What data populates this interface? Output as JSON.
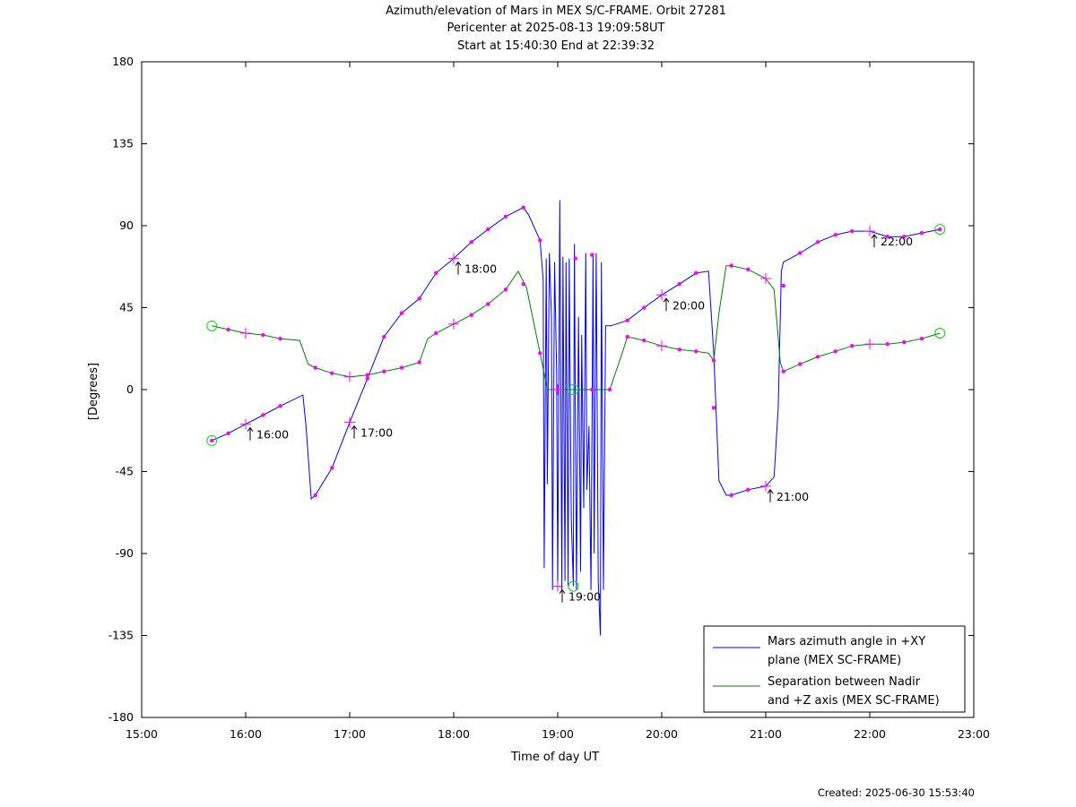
{
  "chart_data": {
    "type": "line",
    "title_lines": [
      "Azimuth/elevation of Mars in MEX S/C-FRAME.  Orbit 27281",
      "Pericenter at 2025-08-13 19:09:58UT",
      "Start at 15:40:30 End at 22:39:32"
    ],
    "xlabel": "Time of day UT",
    "ylabel": "[Degrees]",
    "xlim": [
      15.0,
      23.0
    ],
    "ylim": [
      -180,
      180
    ],
    "x_ticks": [
      15,
      16,
      17,
      18,
      19,
      20,
      21,
      22,
      23
    ],
    "x_tick_labels": [
      "15:00",
      "16:00",
      "17:00",
      "18:00",
      "19:00",
      "20:00",
      "21:00",
      "22:00",
      "23:00"
    ],
    "y_ticks": [
      180,
      135,
      90,
      45,
      0,
      -45,
      -90,
      -135,
      -180
    ],
    "y_tick_labels": [
      "180",
      "135",
      "90",
      "45",
      "0",
      "-45",
      "-90",
      "-135",
      "-180"
    ],
    "grid": false,
    "legend_position": "bottom-right",
    "series": [
      {
        "name": "Mars azimuth angle in +XY plane (MEX SC-FRAME)",
        "legend_lines": [
          "Mars azimuth angle in +XY",
          "plane (MEX SC-FRAME)"
        ],
        "color": "#0000ff",
        "x": [
          15.675,
          15.833,
          16.0,
          16.167,
          16.333,
          16.55,
          16.58,
          16.63,
          16.67,
          16.83,
          17.0,
          17.17,
          17.33,
          17.5,
          17.67,
          17.83,
          18.0,
          18.17,
          18.33,
          18.5,
          18.67,
          18.72,
          18.83,
          18.86,
          18.87,
          18.89,
          18.9,
          18.92,
          18.94,
          18.95,
          18.97,
          18.99,
          19.0,
          19.02,
          19.04,
          19.05,
          19.07,
          19.08,
          19.1,
          19.11,
          19.13,
          19.15,
          19.16,
          19.18,
          19.2,
          19.22,
          19.23,
          19.25,
          19.27,
          19.28,
          19.3,
          19.32,
          19.34,
          19.35,
          19.37,
          19.39,
          19.41,
          19.42,
          19.44,
          19.46,
          19.48,
          19.49,
          19.5,
          19.51,
          19.67,
          19.83,
          20.0,
          20.17,
          20.33,
          20.45,
          20.5,
          20.55,
          20.62,
          20.67,
          20.83,
          21.0,
          21.08,
          21.12,
          21.15,
          21.17,
          21.33,
          21.5,
          21.67,
          21.83,
          22.0,
          22.17,
          22.33,
          22.5,
          22.675
        ],
        "y": [
          -28,
          -24,
          -19,
          -14,
          -9,
          -3,
          -20,
          -60,
          -58,
          -43,
          -18,
          6,
          29,
          42,
          50,
          64,
          72,
          81,
          88,
          95,
          100,
          96,
          82,
          60,
          -98,
          72,
          -52,
          75,
          40,
          -110,
          70,
          10,
          -108,
          104,
          -110,
          73,
          -105,
          70,
          -108,
          72,
          -70,
          -108,
          80,
          -110,
          40,
          -100,
          30,
          -65,
          75,
          -55,
          -20,
          -110,
          75,
          -90,
          75,
          -105,
          -135,
          70,
          -110,
          35,
          35,
          35,
          35,
          35,
          38,
          45,
          52,
          58,
          64,
          65,
          20,
          -50,
          -58,
          -58,
          -55,
          -53,
          -48,
          -10,
          65,
          70,
          75,
          81,
          85,
          87,
          87,
          84,
          84,
          86,
          88
        ]
      },
      {
        "name": "Separation between Nadir and +Z axis (MEX SC-FRAME)",
        "legend_lines": [
          "Separation between Nadir",
          "and +Z axis (MEX SC-FRAME)"
        ],
        "color": "#008000",
        "x": [
          15.675,
          15.833,
          16.0,
          16.167,
          16.333,
          16.52,
          16.6,
          16.67,
          16.83,
          17.0,
          17.17,
          17.33,
          17.5,
          17.67,
          17.75,
          17.83,
          18.0,
          18.17,
          18.33,
          18.5,
          18.62,
          18.7,
          18.83,
          18.9,
          19.0,
          19.17,
          19.33,
          19.5,
          19.62,
          19.67,
          19.83,
          20.0,
          20.17,
          20.33,
          20.45,
          20.5,
          20.55,
          20.62,
          20.67,
          20.83,
          21.0,
          21.08,
          21.14,
          21.17,
          21.33,
          21.5,
          21.67,
          21.83,
          22.0,
          22.17,
          22.33,
          22.5,
          22.675
        ],
        "y": [
          35,
          33,
          31,
          30,
          28,
          27,
          14,
          12,
          9,
          7,
          8,
          10,
          12,
          15,
          28,
          31,
          36,
          41,
          47,
          55,
          65,
          56,
          20,
          0,
          0,
          0,
          0,
          0,
          20,
          29,
          27,
          24,
          22,
          21,
          20,
          16,
          42,
          68,
          68,
          66,
          61,
          55,
          15,
          10,
          14,
          18,
          21,
          24,
          25,
          25,
          26,
          28,
          31
        ]
      }
    ],
    "markers": {
      "dots": [
        [
          15.675,
          -28
        ],
        [
          15.833,
          -24
        ],
        [
          16.167,
          -14
        ],
        [
          16.333,
          -9
        ],
        [
          16.67,
          -58
        ],
        [
          16.83,
          -43
        ],
        [
          17.17,
          6
        ],
        [
          17.33,
          29
        ],
        [
          17.5,
          42
        ],
        [
          17.67,
          50
        ],
        [
          17.83,
          64
        ],
        [
          18.17,
          81
        ],
        [
          18.33,
          88
        ],
        [
          18.5,
          95
        ],
        [
          18.67,
          100
        ],
        [
          18.83,
          82
        ],
        [
          19.17,
          72
        ],
        [
          19.33,
          74
        ],
        [
          19.67,
          38
        ],
        [
          19.83,
          45
        ],
        [
          20.17,
          58
        ],
        [
          20.33,
          64
        ],
        [
          20.5,
          -10
        ],
        [
          20.67,
          -58
        ],
        [
          20.83,
          -55
        ],
        [
          21.17,
          57
        ],
        [
          21.33,
          75
        ],
        [
          21.5,
          81
        ],
        [
          21.67,
          85
        ],
        [
          21.83,
          87
        ],
        [
          22.17,
          84
        ],
        [
          22.33,
          84
        ],
        [
          22.5,
          86
        ],
        [
          22.675,
          88
        ],
        [
          15.833,
          33
        ],
        [
          16.167,
          30
        ],
        [
          16.333,
          28
        ],
        [
          16.67,
          12
        ],
        [
          16.83,
          9
        ],
        [
          17.17,
          8
        ],
        [
          17.33,
          10
        ],
        [
          17.5,
          12
        ],
        [
          17.67,
          15
        ],
        [
          17.83,
          31
        ],
        [
          18.17,
          41
        ],
        [
          18.33,
          47
        ],
        [
          18.5,
          55
        ],
        [
          18.67,
          58
        ],
        [
          18.83,
          20
        ],
        [
          19.0,
          0
        ],
        [
          19.33,
          0
        ],
        [
          19.5,
          0
        ],
        [
          19.67,
          29
        ],
        [
          19.83,
          27
        ],
        [
          20.17,
          22
        ],
        [
          20.33,
          21
        ],
        [
          20.5,
          16
        ],
        [
          20.67,
          68
        ],
        [
          20.83,
          66
        ],
        [
          21.17,
          10
        ],
        [
          21.33,
          14
        ],
        [
          21.5,
          18
        ],
        [
          21.67,
          21
        ],
        [
          21.83,
          24
        ],
        [
          22.17,
          25
        ],
        [
          22.33,
          26
        ],
        [
          22.5,
          28
        ]
      ],
      "hour_crosses": [
        [
          16.0,
          -19
        ],
        [
          17.0,
          -18
        ],
        [
          18.0,
          72
        ],
        [
          19.0,
          -108
        ],
        [
          20.0,
          52
        ],
        [
          21.0,
          -53
        ],
        [
          22.0,
          87
        ],
        [
          16.0,
          31
        ],
        [
          17.0,
          7
        ],
        [
          18.0,
          36
        ],
        [
          19.0,
          0
        ],
        [
          20.0,
          24
        ],
        [
          21.0,
          61
        ],
        [
          22.0,
          25
        ]
      ],
      "circles": [
        [
          15.675,
          -28
        ],
        [
          15.675,
          35
        ],
        [
          19.15,
          0
        ],
        [
          19.15,
          -108
        ],
        [
          22.675,
          88
        ],
        [
          22.675,
          31
        ]
      ]
    },
    "annotations": [
      {
        "text": "16:00",
        "x": 16.0,
        "y": -19
      },
      {
        "text": "17:00",
        "x": 17.0,
        "y": -18
      },
      {
        "text": "18:00",
        "x": 18.0,
        "y": 72
      },
      {
        "text": "19:00",
        "x": 19.0,
        "y": -108
      },
      {
        "text": "20:00",
        "x": 20.0,
        "y": 52
      },
      {
        "text": "21:00",
        "x": 21.0,
        "y": -53
      },
      {
        "text": "22:00",
        "x": 22.0,
        "y": 87
      }
    ]
  },
  "footer": {
    "created": "Created: 2025-06-30 15:53:40"
  }
}
